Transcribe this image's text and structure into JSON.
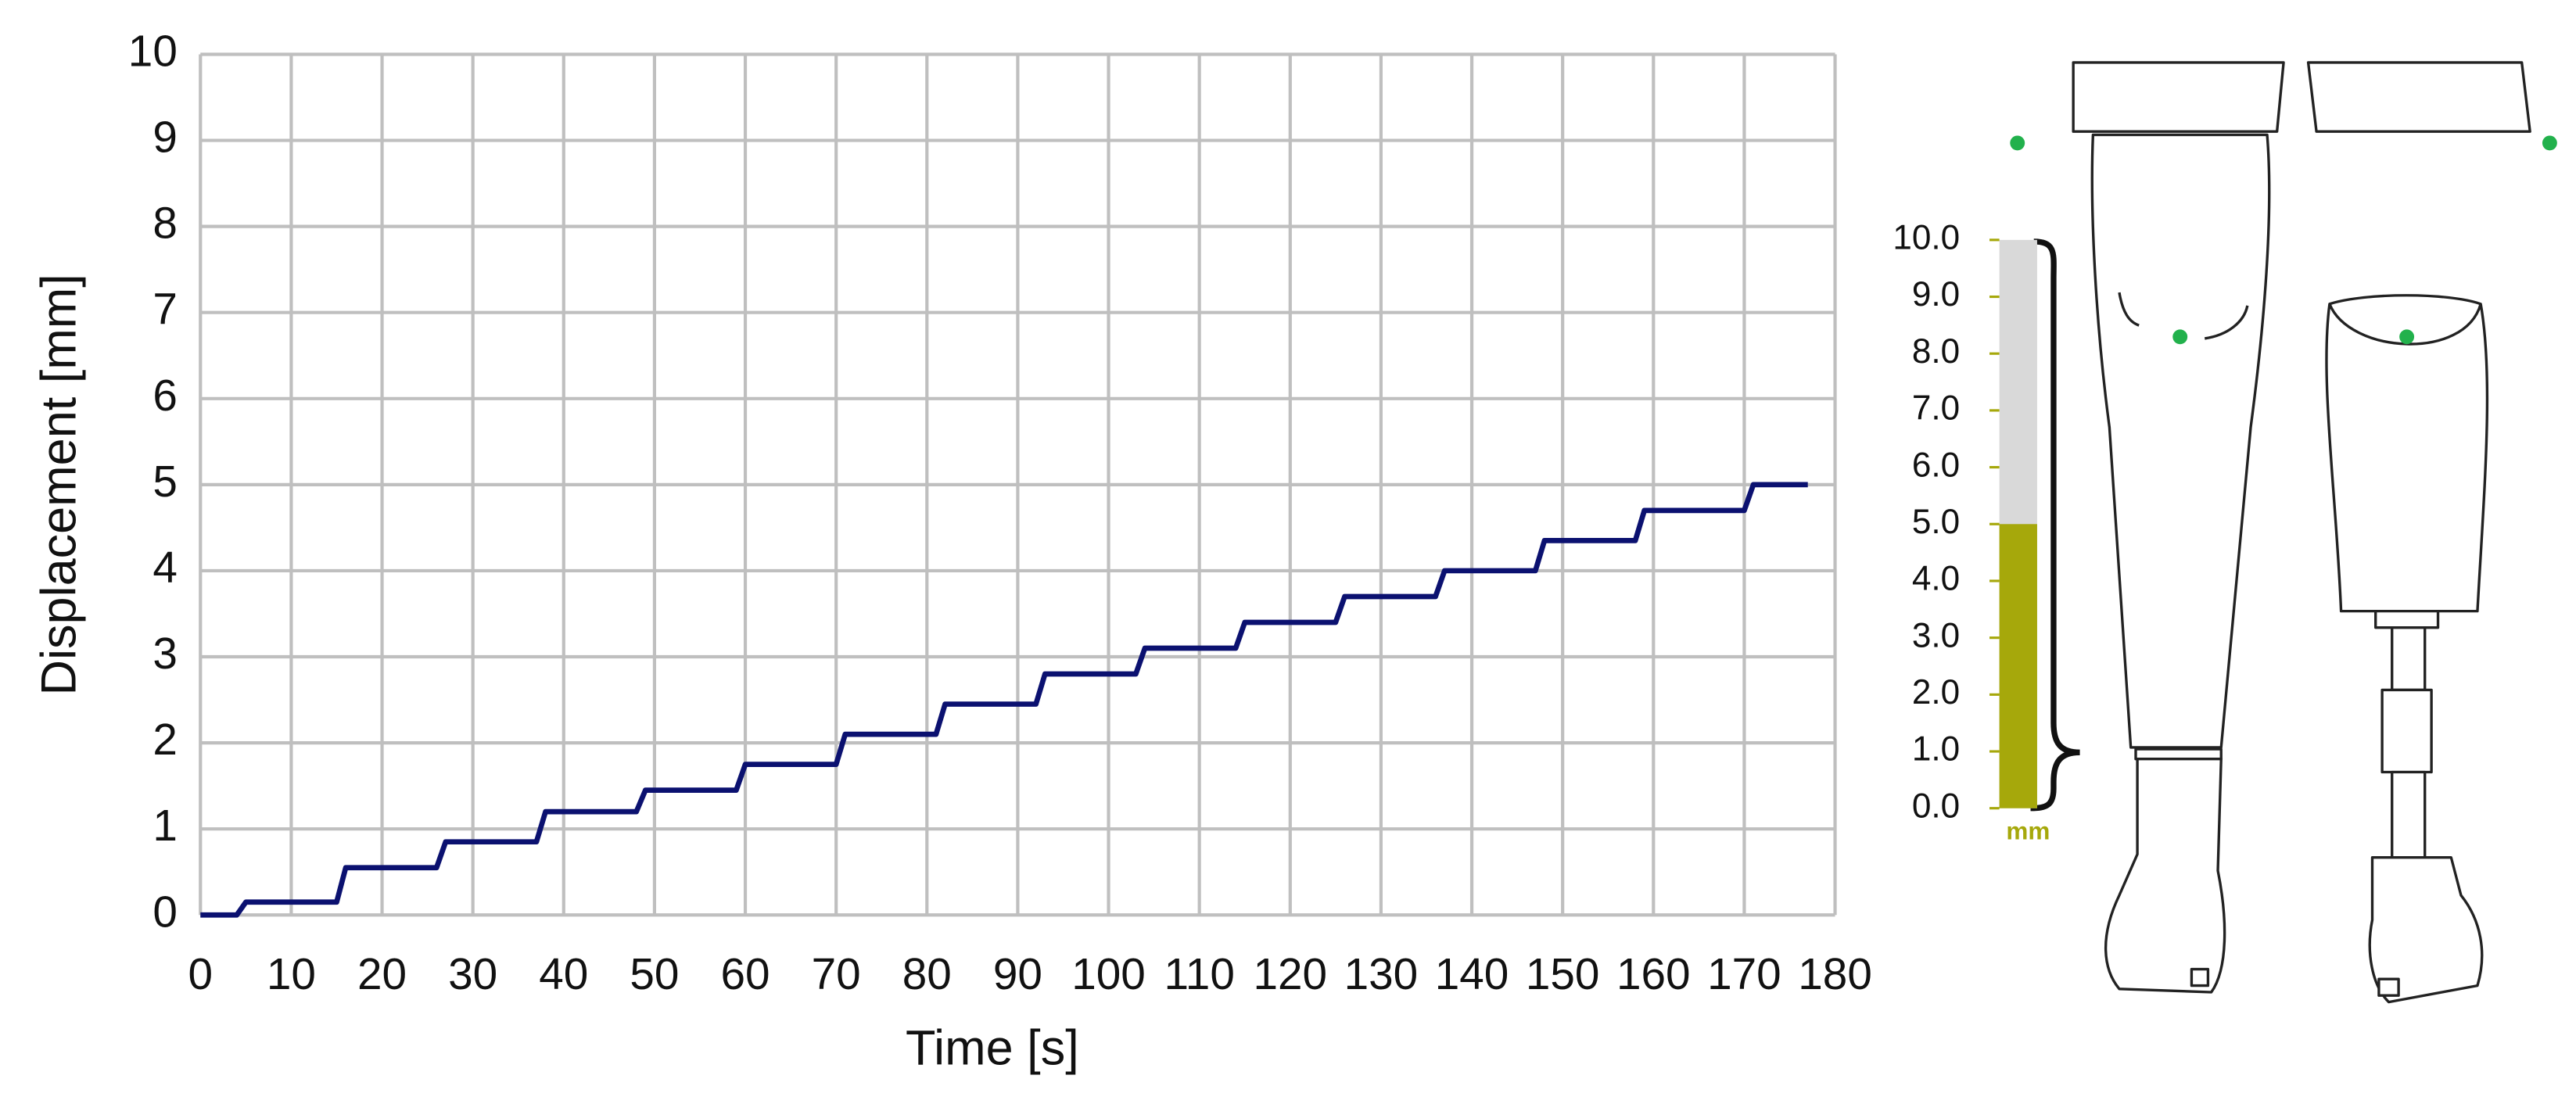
{
  "chart_data": [
    {
      "type": "line",
      "x": [
        0,
        4,
        5,
        15,
        16,
        26,
        27,
        37,
        38,
        48,
        49,
        59,
        60,
        70,
        71,
        81,
        82,
        92,
        93,
        103,
        104,
        114,
        115,
        125,
        126,
        136,
        137,
        147,
        148,
        158,
        159,
        170,
        171,
        177
      ],
      "values": [
        0,
        0,
        0.15,
        0.15,
        0.55,
        0.55,
        0.85,
        0.85,
        1.2,
        1.2,
        1.45,
        1.45,
        1.75,
        1.75,
        2.1,
        2.1,
        2.45,
        2.45,
        2.8,
        2.8,
        3.1,
        3.1,
        3.4,
        3.4,
        3.7,
        3.7,
        4.0,
        4.0,
        4.35,
        4.35,
        4.7,
        4.7,
        5.0,
        5.0
      ],
      "color": "#0b1170",
      "xlabel": "Time [s]",
      "ylabel": "Displacement [mm]",
      "xlim": [
        0,
        180
      ],
      "ylim": [
        0,
        10
      ],
      "xticks": [
        0,
        10,
        20,
        30,
        40,
        50,
        60,
        70,
        80,
        90,
        100,
        110,
        120,
        130,
        140,
        150,
        160,
        170,
        180
      ],
      "yticks": [
        0,
        1,
        2,
        3,
        4,
        5,
        6,
        7,
        8,
        9,
        10
      ],
      "grid": true
    },
    {
      "type": "gauge",
      "values": [
        5.0
      ],
      "color": "#a6a80b",
      "track_color": "#d9d9d9",
      "ylim": [
        0,
        10
      ],
      "yticks": [
        {
          "value": 0,
          "label": "0.0"
        },
        {
          "value": 1,
          "label": "1.0"
        },
        {
          "value": 2,
          "label": "2.0"
        },
        {
          "value": 3,
          "label": "3.0"
        },
        {
          "value": 4,
          "label": "4.0"
        },
        {
          "value": 5,
          "label": "5.0"
        },
        {
          "value": 6,
          "label": "6.0"
        },
        {
          "value": 7,
          "label": "7.0"
        },
        {
          "value": 8,
          "label": "8.0"
        },
        {
          "value": 9,
          "label": "9.0"
        },
        {
          "value": 10,
          "label": "10.0"
        }
      ],
      "unit": "mm"
    }
  ]
}
